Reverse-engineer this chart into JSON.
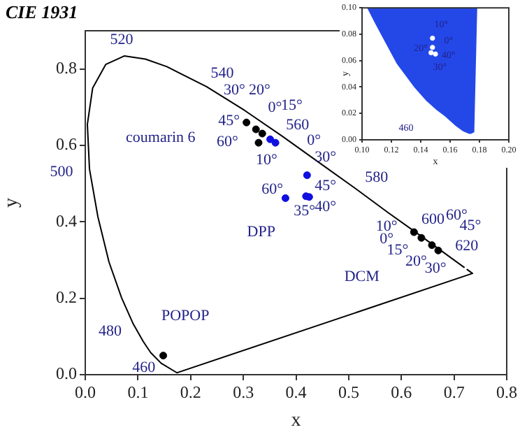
{
  "chart_data": [
    {
      "type": "scatter",
      "title": "CIE 1931",
      "xlabel": "x",
      "ylabel": "y",
      "xlim": [
        0,
        0.8
      ],
      "ylim": [
        0,
        0.9
      ],
      "xticks": [
        {
          "value": 0,
          "label": "0.0"
        },
        0.1,
        0.2,
        0.3,
        0.4,
        0.5,
        0.6,
        0.7,
        0.8
      ],
      "yticks": [
        {
          "value": 0,
          "label": "0.0"
        },
        0.2,
        0.4,
        0.6,
        0.8
      ],
      "grid": false,
      "series": [
        {
          "type": "line",
          "color": "#000000",
          "x": [
            0.725,
            0.735,
            0.174,
            0.144,
            0.124,
            0.11,
            0.091,
            0.069,
            0.045,
            0.024,
            0.008,
            0.004,
            0.014,
            0.039,
            0.074,
            0.114,
            0.155,
            0.23,
            0.302,
            0.373,
            0.444,
            0.513,
            0.575,
            0.627,
            0.692,
            0.719
          ],
          "values": [
            0.275,
            0.265,
            0.005,
            0.03,
            0.058,
            0.087,
            0.133,
            0.201,
            0.295,
            0.413,
            0.538,
            0.655,
            0.75,
            0.812,
            0.834,
            0.826,
            0.806,
            0.754,
            0.692,
            0.625,
            0.555,
            0.487,
            0.424,
            0.373,
            0.308,
            0.281
          ]
        },
        {
          "color": "#000000",
          "x": [
            0.306,
            0.324,
            0.336,
            0.329
          ],
          "values": [
            0.66,
            0.642,
            0.631,
            0.607
          ]
        },
        {
          "color": "#1010e0",
          "x": [
            0.351,
            0.361,
            0.421,
            0.38,
            0.419,
            0.425
          ],
          "values": [
            0.616,
            0.607,
            0.522,
            0.462,
            0.467,
            0.465
          ]
        },
        {
          "color": "#000000",
          "x": [
            0.624,
            0.638,
            0.658,
            0.67
          ],
          "values": [
            0.373,
            0.358,
            0.339,
            0.325
          ]
        },
        {
          "color": "#000000",
          "x": [
            0.148
          ],
          "values": [
            0.05
          ]
        }
      ],
      "annotations": [
        "520",
        "540",
        "560",
        "580",
        "600",
        "620",
        "500",
        "480",
        "460",
        "coumarin 6",
        "DPP",
        "DCM",
        "POPOP",
        "30°",
        "20°",
        "0°",
        "45°",
        "60°",
        "10°",
        "15°",
        "0°",
        "30°",
        "45°",
        "60°",
        "35°",
        "40°",
        "10°",
        "0°",
        "15°",
        "20°",
        "30°",
        "60°",
        "45°"
      ]
    },
    {
      "type": "scatter",
      "xlabel": "x",
      "ylabel": "y",
      "xlim": [
        0.1,
        0.2
      ],
      "ylim": [
        0,
        0.1
      ],
      "xticks": [
        {
          "value": 0.1,
          "label": "0.10"
        },
        {
          "value": 0.12,
          "label": "0.12"
        },
        {
          "value": 0.14,
          "label": "0.14"
        },
        {
          "value": 0.16,
          "label": "0.16"
        },
        {
          "value": 0.18,
          "label": "0.18"
        },
        {
          "value": 0.2,
          "label": "0.20"
        }
      ],
      "yticks": [
        {
          "value": 0,
          "label": "0.00"
        },
        {
          "value": 0.02,
          "label": "0.02"
        },
        {
          "value": 0.04,
          "label": "0.04"
        },
        {
          "value": 0.06,
          "label": "0.06"
        },
        {
          "value": 0.08,
          "label": "0.08"
        },
        {
          "value": 0.1,
          "label": "0.10"
        }
      ],
      "grid": false,
      "series": [
        {
          "type": "area",
          "color": "#2448e8",
          "x": [
            0.104,
            0.11,
            0.124,
            0.136,
            0.144,
            0.151,
            0.157,
            0.164,
            0.169,
            0.173,
            0.174,
            0.176,
            0.178
          ],
          "values": [
            0.1,
            0.087,
            0.058,
            0.04,
            0.03,
            0.023,
            0.018,
            0.011,
            0.007,
            0.005,
            0.005,
            0.006,
            0.1
          ]
        },
        {
          "color": "#ffffff",
          "x": [
            0.148,
            0.148,
            0.15,
            0.147
          ],
          "values": [
            0.077,
            0.07,
            0.065,
            0.066
          ]
        }
      ],
      "annotations": [
        "10°",
        "0°",
        "20°",
        "40°",
        "30°",
        "460"
      ]
    }
  ]
}
